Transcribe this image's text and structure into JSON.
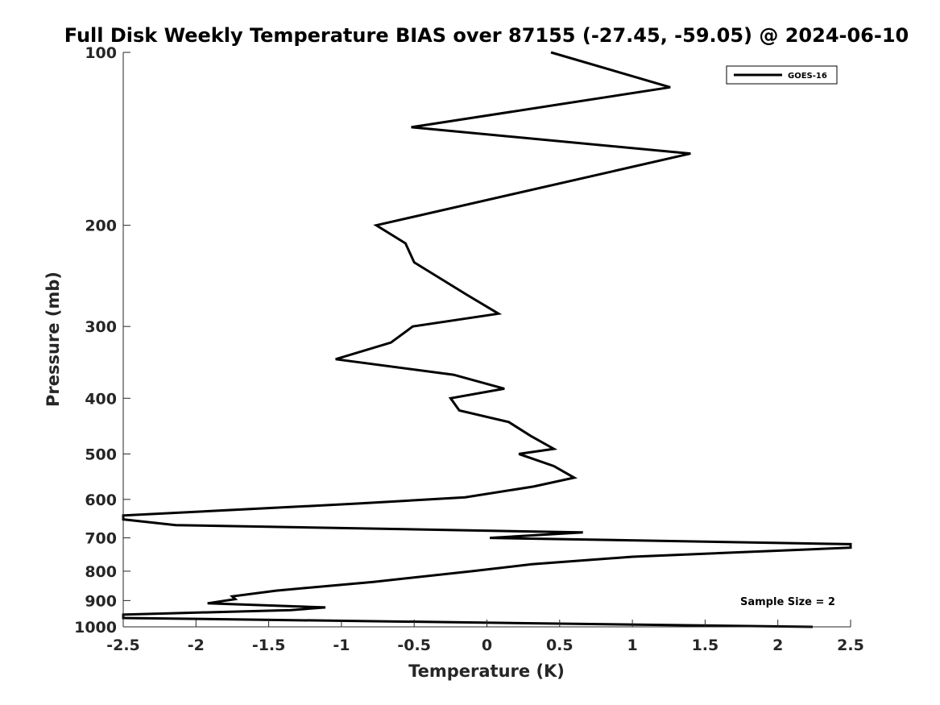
{
  "chart_data": {
    "type": "line",
    "title": "Full Disk Weekly Temperature BIAS over 87155 (-27.45, -59.05) @ 2024-06-10",
    "xlabel": "Temperature (K)",
    "ylabel": "Pressure (mb)",
    "xlim": [
      -2.5,
      2.5
    ],
    "ylim": [
      100,
      1000
    ],
    "yscale": "log",
    "y_reversed": true,
    "xticks": [
      -2.5,
      -2,
      -1.5,
      -1,
      -0.5,
      0,
      0.5,
      1,
      1.5,
      2,
      2.5
    ],
    "xtick_labels": [
      "-2.5",
      "-2",
      "-1.5",
      "-1",
      "-0.5",
      "0",
      "0.5",
      "1",
      "1.5",
      "2",
      "2.5"
    ],
    "yticks": [
      100,
      200,
      300,
      400,
      500,
      600,
      700,
      800,
      900,
      1000
    ],
    "ytick_labels": [
      "100",
      "200",
      "300",
      "400",
      "500",
      "600",
      "700",
      "800",
      "900",
      "1000"
    ],
    "grid": false,
    "legend": {
      "position": "top-right",
      "entries": [
        "GOES-16"
      ]
    },
    "annotations": [
      "Sample Size = 2"
    ],
    "series": [
      {
        "name": "GOES-16",
        "color": "#000000",
        "points": [
          {
            "t": 0.44,
            "p": 100
          },
          {
            "t": 1.26,
            "p": 115
          },
          {
            "t": -0.52,
            "p": 135
          },
          {
            "t": 1.4,
            "p": 150
          },
          {
            "t": -0.76,
            "p": 200
          },
          {
            "t": -0.56,
            "p": 215
          },
          {
            "t": -0.5,
            "p": 232
          },
          {
            "t": -0.14,
            "p": 264
          },
          {
            "t": 0.08,
            "p": 285
          },
          {
            "t": -0.51,
            "p": 300
          },
          {
            "t": -0.66,
            "p": 320
          },
          {
            "t": -1.04,
            "p": 342
          },
          {
            "t": -0.23,
            "p": 364
          },
          {
            "t": 0.12,
            "p": 385
          },
          {
            "t": -0.25,
            "p": 400
          },
          {
            "t": -0.19,
            "p": 420
          },
          {
            "t": 0.15,
            "p": 440
          },
          {
            "t": 0.3,
            "p": 465
          },
          {
            "t": 0.46,
            "p": 490
          },
          {
            "t": 0.22,
            "p": 500
          },
          {
            "t": 0.46,
            "p": 525
          },
          {
            "t": 0.6,
            "p": 550
          },
          {
            "t": 0.32,
            "p": 570
          },
          {
            "t": -0.15,
            "p": 595
          },
          {
            "t": -0.88,
            "p": 610
          },
          {
            "t": -2.5,
            "p": 640
          },
          {
            "t": -2.5,
            "p": 650
          },
          {
            "t": -2.14,
            "p": 665
          },
          {
            "t": 0.66,
            "p": 685
          },
          {
            "t": 0.02,
            "p": 700
          },
          {
            "t": 2.5,
            "p": 718
          },
          {
            "t": 2.5,
            "p": 728
          },
          {
            "t": 1.0,
            "p": 755
          },
          {
            "t": 0.31,
            "p": 778
          },
          {
            "t": -0.1,
            "p": 800
          },
          {
            "t": -0.78,
            "p": 835
          },
          {
            "t": -1.45,
            "p": 865
          },
          {
            "t": -1.75,
            "p": 885
          },
          {
            "t": -1.73,
            "p": 895
          },
          {
            "t": -1.92,
            "p": 910
          },
          {
            "t": -1.11,
            "p": 925
          },
          {
            "t": -1.35,
            "p": 935
          },
          {
            "t": -2.5,
            "p": 952
          },
          {
            "t": -2.5,
            "p": 965
          },
          {
            "t": 2.24,
            "p": 1000
          }
        ]
      }
    ]
  }
}
